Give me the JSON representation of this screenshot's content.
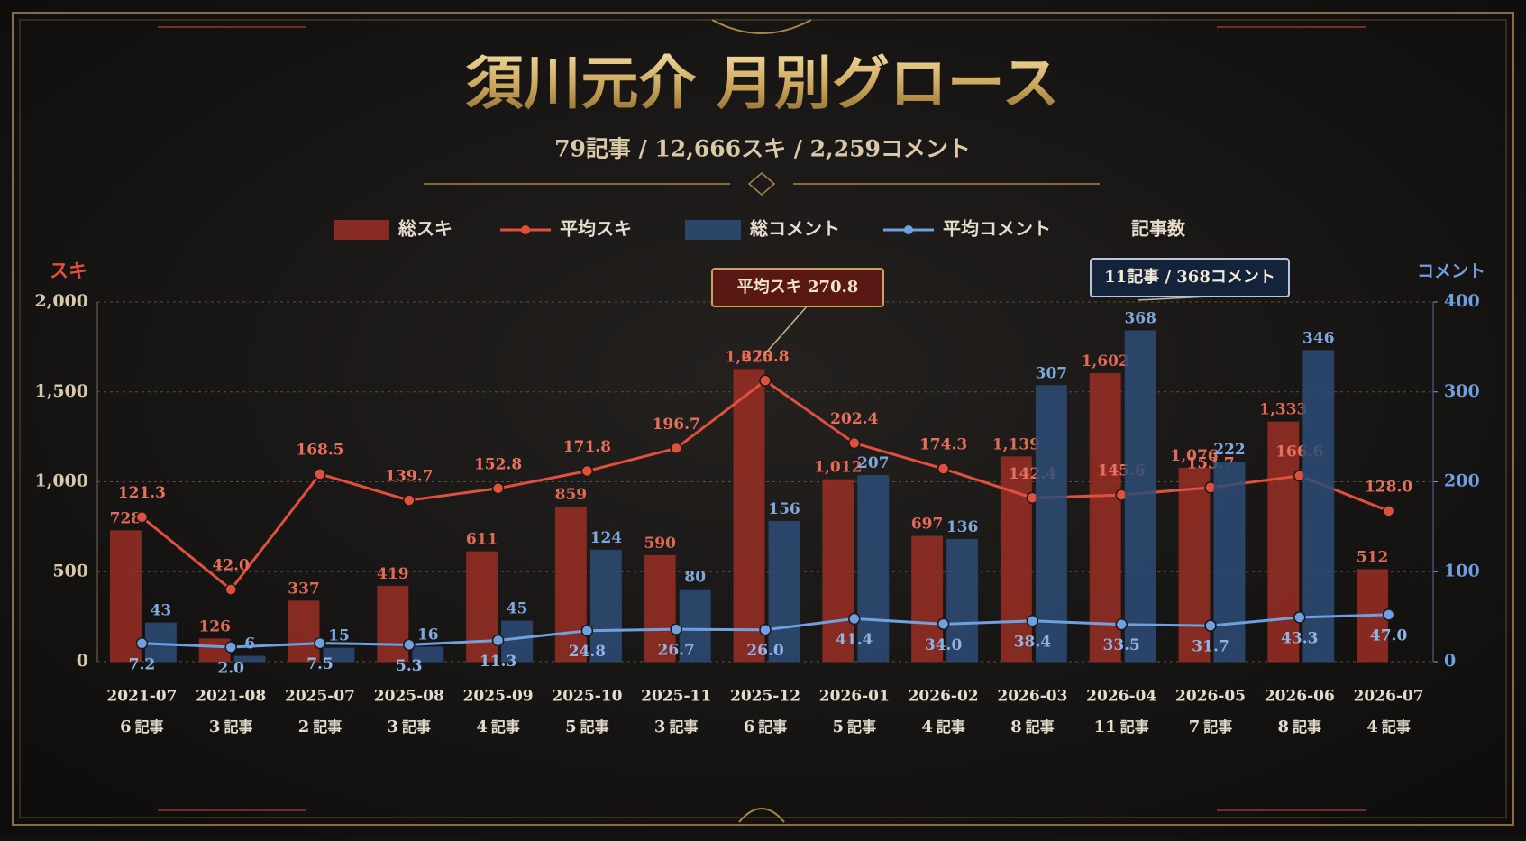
{
  "chart_data": {
    "type": "combo",
    "title": "須川元介 月別グロース",
    "subtitle": "79記事 / 12,666スキ / 2,259コメント",
    "categories": [
      "2021-07",
      "2021-08",
      "2025-07",
      "2025-08",
      "2025-09",
      "2025-10",
      "2025-11",
      "2025-12",
      "2026-01",
      "2026-02",
      "2026-03",
      "2026-04",
      "2026-05",
      "2026-06",
      "2026-07"
    ],
    "ylabel": "スキ",
    "y2label": "コメント",
    "ylim": [
      0,
      2000
    ],
    "yticks": [
      0,
      500,
      {
        "value": 1000,
        "label": "1,000"
      },
      {
        "value": 1500,
        "label": "1,500"
      },
      {
        "value": 2000,
        "label": "2,000"
      }
    ],
    "y2lim": [
      0,
      400
    ],
    "y2ticks": [
      0,
      100,
      200,
      300,
      400
    ],
    "y3lim": [
      -37,
      357
    ],
    "y4lim": [
      -18,
      480
    ],
    "grid": true,
    "series": [
      {
        "name": "総スキ",
        "type": "bar",
        "color": "#9a2f24",
        "axis": "y",
        "values": [
          728,
          126,
          337,
          419,
          611,
          859,
          590,
          1625,
          1012,
          697,
          1139,
          1602,
          1076,
          1333,
          512
        ],
        "value_labels": [
          "728",
          "126",
          "337",
          "419",
          "611",
          "859",
          "590",
          "1,625",
          "1,012",
          "697",
          "1,139",
          "1,602",
          "1,076",
          "1,333",
          "512"
        ]
      },
      {
        "name": "平均スキ",
        "type": "line",
        "color": "#e0503c",
        "axis": "y3",
        "values": [
          121.3,
          42.0,
          168.5,
          139.7,
          152.8,
          171.8,
          196.7,
          270.8,
          202.4,
          174.3,
          142.4,
          145.6,
          153.7,
          166.6,
          128.0
        ],
        "value_labels": [
          "121.3",
          "42.0",
          "168.5",
          "139.7",
          "152.8",
          "171.8",
          "196.7",
          "270.8",
          "202.4",
          "174.3",
          "142.4",
          "145.6",
          "153.7",
          "166.6",
          "128.0"
        ]
      },
      {
        "name": "総コメント",
        "type": "bar",
        "color": "#2e4d78",
        "axis": "y2",
        "values": [
          43,
          6,
          15,
          16,
          45,
          124,
          80,
          156,
          207,
          136,
          307,
          368,
          222,
          346,
          null
        ]
      },
      {
        "name": "平均コメント",
        "type": "line",
        "color": "#6fa0e0",
        "axis": "y4",
        "values": [
          7.2,
          2.0,
          7.5,
          5.3,
          11.3,
          24.8,
          26.7,
          26.0,
          41.4,
          34.0,
          38.4,
          33.5,
          31.7,
          43.3,
          47.0
        ],
        "value_labels": [
          "7.2",
          "2.0",
          "7.5",
          "5.3",
          "11.3",
          "24.8",
          "26.7",
          "26.0",
          "41.4",
          "34.0",
          "38.4",
          "33.5",
          "31.7",
          "43.3",
          "47.0"
        ]
      },
      {
        "name": "記事数",
        "type": "count",
        "unit": "記事",
        "values": [
          6,
          3,
          2,
          3,
          4,
          5,
          3,
          6,
          5,
          4,
          8,
          11,
          7,
          8,
          4
        ]
      }
    ],
    "annotations": [
      {
        "text": "平均スキ 270.8",
        "index": 7,
        "series": 1
      },
      {
        "text": "11記事 / 368コメント",
        "index": 11,
        "series": 2
      }
    ]
  }
}
